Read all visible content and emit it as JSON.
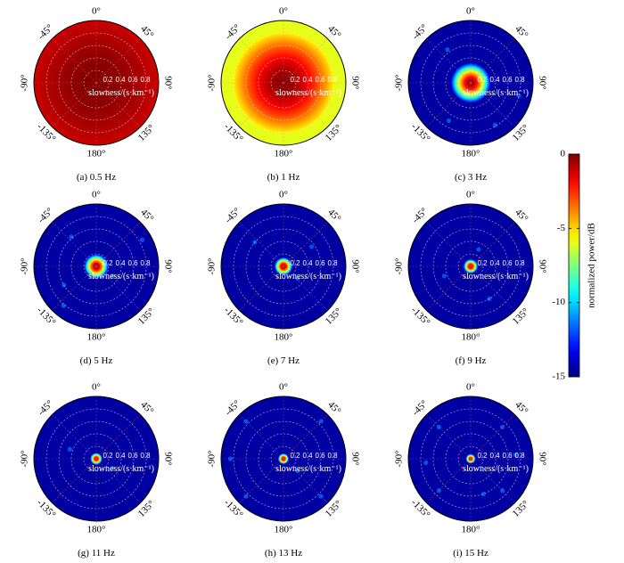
{
  "chart_data": {
    "type": "heatmap",
    "kind": "polar beam-power panels",
    "angle_ticks": [
      {
        "deg": 0,
        "label": "0°"
      },
      {
        "deg": 45,
        "label": "45°"
      },
      {
        "deg": 90,
        "label": "90°"
      },
      {
        "deg": 135,
        "label": "135°"
      },
      {
        "deg": 180,
        "label": "180°"
      },
      {
        "deg": -135,
        "label": "-135°"
      },
      {
        "deg": -90,
        "label": "-90°"
      },
      {
        "deg": -45,
        "label": "-45°"
      }
    ],
    "radial_ticks": [
      "0.2",
      "0.4",
      "0.6",
      "0.8"
    ],
    "radial_max": 1.0,
    "radial_label": "slowness/(s·km⁻¹)",
    "colorbar": {
      "label": "normalized power/dB",
      "min": -15,
      "max": 0,
      "ticks": [
        "0",
        "-5",
        "-10",
        "-15"
      ],
      "colormap": "jet"
    },
    "panels": [
      {
        "caption": "(a) 0.5 Hz",
        "bg_db": -1.5,
        "peak_radius": 1.2,
        "spots": []
      },
      {
        "caption": "(b) 1 Hz",
        "bg_db": -6,
        "peak_radius": 0.85,
        "spots": []
      },
      {
        "caption": "(c) 3 Hz",
        "bg_db": -14.5,
        "peak_radius": 0.33,
        "spots": [
          [
            0.65,
            -35
          ],
          [
            0.78,
            150
          ],
          [
            0.7,
            -150
          ],
          [
            0.8,
            105
          ]
        ]
      },
      {
        "caption": "(d) 5 Hz",
        "bg_db": -14.5,
        "peak_radius": 0.2,
        "spots": [
          [
            0.62,
            -40
          ],
          [
            0.85,
            60
          ],
          [
            0.6,
            -120
          ],
          [
            0.82,
            -140
          ],
          [
            0.3,
            120
          ]
        ]
      },
      {
        "caption": "(e) 7 Hz",
        "bg_db": -14.5,
        "peak_radius": 0.15,
        "spots": [
          [
            0.55,
            55
          ],
          [
            0.6,
            -50
          ],
          [
            0.3,
            130
          ]
        ]
      },
      {
        "caption": "(f) 9 Hz",
        "bg_db": -14.5,
        "peak_radius": 0.12,
        "spots": [
          [
            0.3,
            25
          ],
          [
            0.45,
            -110
          ],
          [
            0.6,
            150
          ]
        ]
      },
      {
        "caption": "(g) 11 Hz",
        "bg_db": -14.5,
        "peak_radius": 0.1,
        "spots": [
          [
            0.3,
            120
          ],
          [
            0.45,
            -70
          ]
        ]
      },
      {
        "caption": "(h) 13 Hz",
        "bg_db": -14.5,
        "peak_radius": 0.09,
        "spots": [
          [
            0.85,
            -45
          ],
          [
            0.85,
            45
          ],
          [
            0.85,
            135
          ],
          [
            0.85,
            -135
          ],
          [
            0.85,
            -90
          ],
          [
            0.3,
            130
          ]
        ]
      },
      {
        "caption": "(i) 15 Hz",
        "bg_db": -14.5,
        "peak_radius": 0.08,
        "spots": [
          [
            0.72,
            -45
          ],
          [
            0.72,
            45
          ],
          [
            0.72,
            135
          ],
          [
            0.72,
            -135
          ],
          [
            0.72,
            -95
          ],
          [
            0.72,
            85
          ],
          [
            0.6,
            160
          ]
        ]
      }
    ]
  }
}
